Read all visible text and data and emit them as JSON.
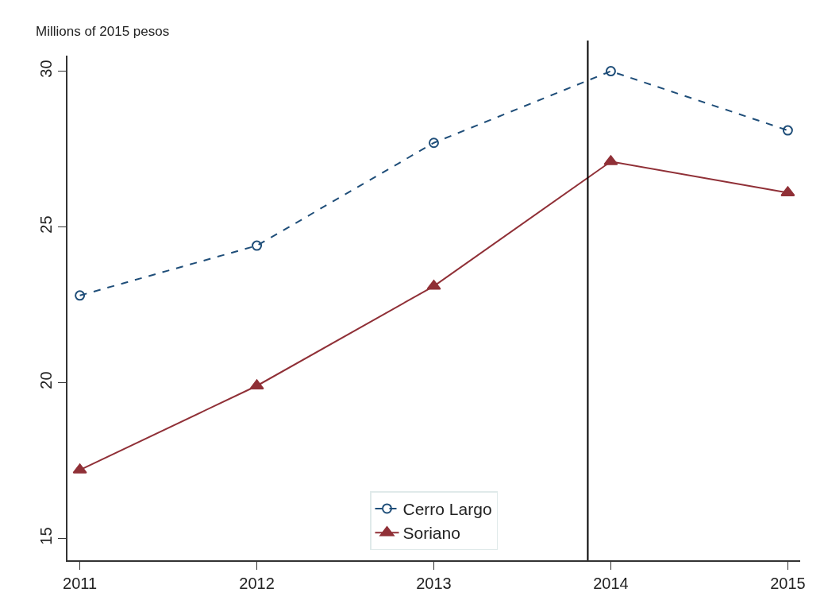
{
  "chart_data": {
    "type": "line",
    "ylabel": "Millions of 2015 pesos",
    "x": [
      2011,
      2012,
      2013,
      2014,
      2015
    ],
    "series": [
      {
        "name": "Cerro Largo",
        "color": "#1f4e79",
        "values": [
          22.8,
          24.4,
          27.7,
          30.0,
          28.1
        ],
        "marker": "circle",
        "line_style": "dashed"
      },
      {
        "name": "Soriano",
        "color": "#903037",
        "values": [
          17.2,
          19.9,
          23.1,
          27.1,
          26.1
        ],
        "marker": "triangle",
        "line_style": "solid"
      }
    ],
    "xlim": [
      2010.93,
      2015.07
    ],
    "xticks": [
      2011,
      2012,
      2013,
      2014,
      2015
    ],
    "ylim": [
      14.3,
      30.5
    ],
    "yticks": [
      15,
      20,
      25,
      30
    ],
    "ref_lines": [
      {
        "axis": "x",
        "value": 2013.87,
        "color": "#000000"
      }
    ],
    "grid": false,
    "legend": "bottom"
  }
}
